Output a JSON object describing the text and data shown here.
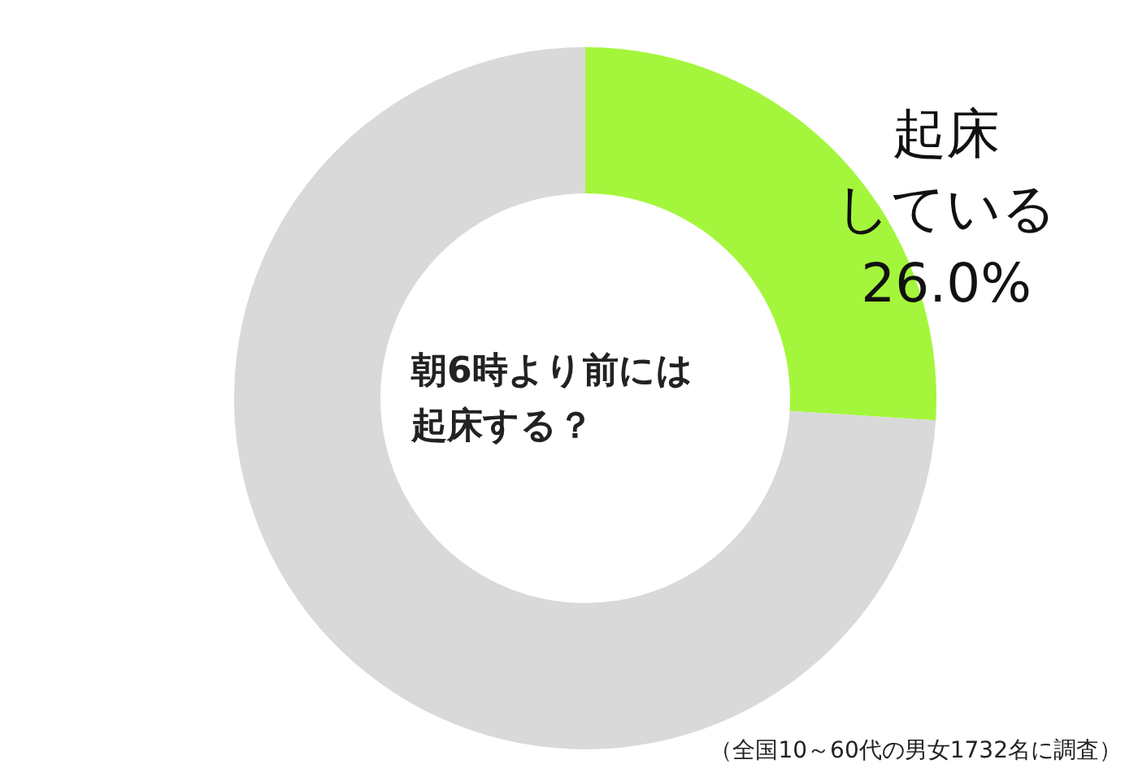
{
  "chart_data": {
    "type": "donut",
    "title": "朝6時より前には起床する？",
    "categories": [
      "起床している",
      null
    ],
    "values": [
      26.0,
      74.0
    ],
    "colors": [
      "#a4f63c",
      "#d9d9d9"
    ],
    "value_labels": [
      "26.0%",
      null
    ],
    "annotations": [
      "（全国10～60代の男女1732名に調査）"
    ]
  }
}
